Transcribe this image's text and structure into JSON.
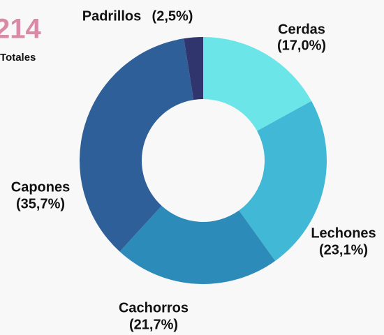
{
  "chart_data": {
    "type": "donut",
    "total_value": 214,
    "total_label": "Totales",
    "categories": [
      "Cerdas",
      "Lechones",
      "Cachorros",
      "Capones",
      "Padrillos"
    ],
    "values": [
      17.0,
      23.1,
      21.7,
      35.7,
      2.5
    ],
    "value_labels": [
      "(17,0%)",
      "(23,1%)",
      "(21,7%)",
      "(35,7%)",
      "(2,5%)"
    ],
    "colors": [
      "#6ce5e8",
      "#41b8d5",
      "#2d8bba",
      "#2f5f98",
      "#31356e"
    ]
  }
}
